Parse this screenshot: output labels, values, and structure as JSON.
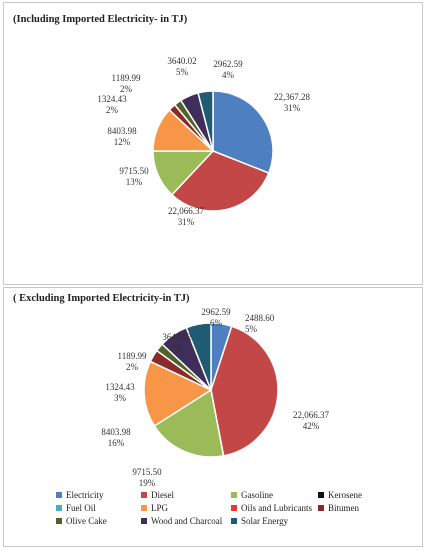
{
  "chart_data": [
    {
      "type": "pie",
      "title": "(Including Imported Electricity- in TJ)",
      "slices": [
        {
          "name": "Electricity",
          "value": "22,367.28",
          "pct": "31%",
          "fraction": 0.31,
          "color": "#4E7FC1"
        },
        {
          "name": "Diesel",
          "value": "22,066.37",
          "pct": "31%",
          "fraction": 0.31,
          "color": "#C44747"
        },
        {
          "name": "Gasoline",
          "value": "9715.50",
          "pct": "13%",
          "fraction": 0.13,
          "color": "#9BBB59"
        },
        {
          "name": "LPG",
          "value": "8403.98",
          "pct": "12%",
          "fraction": 0.12,
          "color": "#F79646"
        },
        {
          "name": "Bitumen",
          "value": "1324.43",
          "pct": "2%",
          "fraction": 0.02,
          "color": "#8B2A2A"
        },
        {
          "name": "Olive Cake",
          "value": "1189.99",
          "pct": "2%",
          "fraction": 0.02,
          "color": "#4F6228"
        },
        {
          "name": "Wood and Charcoal",
          "value": "3640.02",
          "pct": "5%",
          "fraction": 0.05,
          "color": "#3F2D5A"
        },
        {
          "name": "Solar Energy",
          "value": "2962.59",
          "pct": "4%",
          "fraction": 0.04,
          "color": "#1F5C73"
        }
      ]
    },
    {
      "type": "pie",
      "title": "( Excluding Imported Electricity-in TJ)",
      "slices": [
        {
          "name": "Electricity",
          "value": "2488.60",
          "pct": "5%",
          "fraction": 0.05,
          "color": "#4E7FC1"
        },
        {
          "name": "Diesel",
          "value": "22,066.37",
          "pct": "42%",
          "fraction": 0.42,
          "color": "#C44747"
        },
        {
          "name": "Gasoline",
          "value": "9715.50",
          "pct": "19%",
          "fraction": 0.19,
          "color": "#9BBB59"
        },
        {
          "name": "LPG",
          "value": "8403.98",
          "pct": "16%",
          "fraction": 0.16,
          "color": "#F79646"
        },
        {
          "name": "Bitumen",
          "value": "1324.43",
          "pct": "3%",
          "fraction": 0.03,
          "color": "#8B2A2A"
        },
        {
          "name": "Olive Cake",
          "value": "1189.99",
          "pct": "2%",
          "fraction": 0.02,
          "color": "#4F6228"
        },
        {
          "name": "Wood and Charcoal",
          "value": "3640.02",
          "pct": "7%",
          "fraction": 0.07,
          "color": "#3F2D5A"
        },
        {
          "name": "Solar Energy",
          "value": "2962.59",
          "pct": "6%",
          "fraction": 0.06,
          "color": "#1F5C73"
        }
      ],
      "legend": [
        {
          "name": "Electricity",
          "color": "#4E7FC1"
        },
        {
          "name": "Diesel",
          "color": "#C44747"
        },
        {
          "name": "Gasoline",
          "color": "#9BBB59"
        },
        {
          "name": "Kerosene",
          "color": "#111111"
        },
        {
          "name": "Fuel Oil",
          "color": "#4BACC6"
        },
        {
          "name": "LPG",
          "color": "#F79646"
        },
        {
          "name": "Oils and Lubricants",
          "color": "#E83A2E"
        },
        {
          "name": "Bitumen",
          "color": "#8B2A2A"
        },
        {
          "name": "Olive Cake",
          "color": "#4F6228"
        },
        {
          "name": "Wood and Charcoal",
          "color": "#3F2D5A"
        },
        {
          "name": "Solar Energy",
          "color": "#1F5C73"
        }
      ],
      "legend_position": "bottom"
    }
  ]
}
